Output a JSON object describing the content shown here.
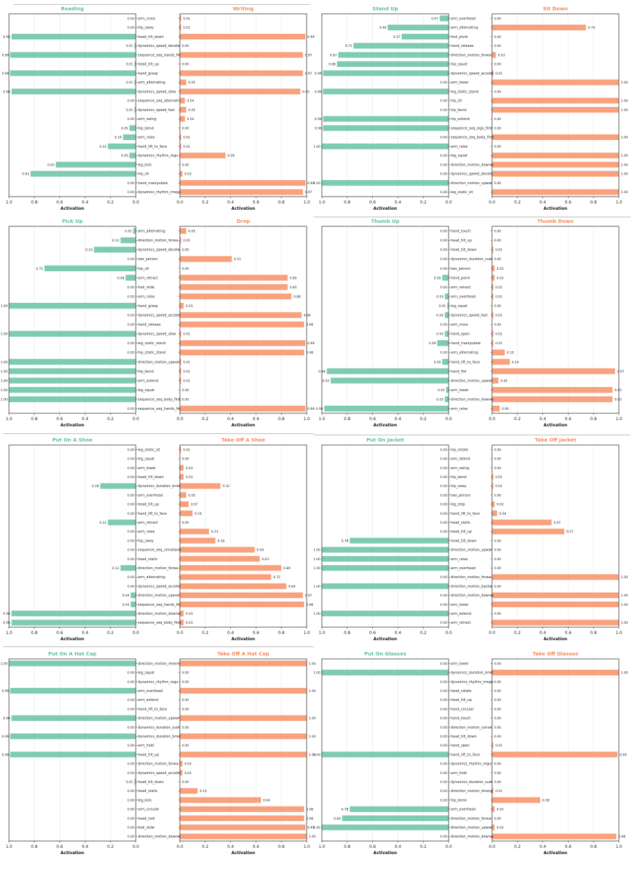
{
  "colors": {
    "left": "#7dcbb0",
    "right": "#f9a07c",
    "leftTitle": "#5fbf98",
    "rightTitle": "#f5895a"
  },
  "axis_label": "Activation",
  "left_ticks": [
    "1.0",
    "0.8",
    "0.6",
    "0.4",
    "0.2",
    "0.0"
  ],
  "right_ticks": [
    "0.0",
    "0.2",
    "0.4",
    "0.6",
    "0.8",
    "1.0"
  ],
  "chart_data": [
    {
      "type": "bar",
      "left_title": "Reading",
      "right_title": "Writing",
      "xlim": [
        0,
        1
      ],
      "categories": [
        "arm_cross",
        "hip_sway",
        "head_tilt_down",
        "dynamics_speed_decele",
        "sequence_seq_hands_fir",
        "head_tilt_up",
        "hand_grasp",
        "arm_alternating",
        "dynamics_speed_slow",
        "sequence_seq_alternati",
        "dynamics_speed_fast",
        "arm_swing",
        "hip_bend",
        "arm_raise",
        "hand_lift_to_face",
        "dynamics_rhythm_regu",
        "leg_kick",
        "hip_sit",
        "hand_manipulate",
        "dynamics_rhythm_irregu"
      ],
      "left_values": [
        0.0,
        0.0,
        0.98,
        0.01,
        0.99,
        0.01,
        0.99,
        0.01,
        0.98,
        0.0,
        0.01,
        0.0,
        0.05,
        0.1,
        0.22,
        0.05,
        0.63,
        0.83,
        0.0,
        0.0
      ],
      "left_labels": [
        "0.00",
        "0.00",
        "0.98",
        "0.01",
        "0.99",
        "0.01",
        "0.99",
        "0.01",
        "0.98",
        "0.00",
        "0.01",
        "0.00",
        "0.05",
        "0.10",
        "0.22",
        "0.05",
        "0.63",
        "0.83",
        "0.00",
        "0.00"
      ],
      "right_values": [
        0.01,
        0.01,
        0.99,
        0.0,
        0.97,
        0.0,
        0.97,
        0.05,
        0.95,
        0.04,
        0.05,
        0.04,
        0.0,
        0.01,
        0.01,
        0.36,
        0.0,
        0.02,
        0.99,
        0.97
      ],
      "right_labels": [
        "0.01",
        "0.01",
        "0.99",
        "0.00",
        "0.97",
        "0.00",
        "0.97",
        "0.05",
        "0.95",
        "0.04",
        "0.05",
        "0.04",
        "0.00",
        "0.01",
        "0.01",
        "0.36",
        "0.00",
        "0.02",
        "0.99",
        "0.97"
      ]
    },
    {
      "type": "bar",
      "left_title": "Stand Up",
      "right_title": "Sit Down",
      "xlim": [
        0,
        1
      ],
      "categories": [
        "arm_overhead",
        "arm_alternating",
        "foot_pivot",
        "hand_release",
        "direction_motion_forwa",
        "hip_squat",
        "dynamics_speed_acceler",
        "arm_lower",
        "leg_static_stand",
        "hip_sit",
        "hip_bend",
        "hip_extend",
        "sequence_seq_legs_first",
        "sequence_seq_body_first",
        "arm_raise",
        "leg_squat",
        "direction_motion_downw",
        "dynamics_speed_decele",
        "direction_motion_upwar",
        "leg_static_sit"
      ],
      "left_values": [
        0.07,
        0.48,
        0.37,
        0.75,
        0.87,
        0.88,
        0.99,
        0.0,
        0.99,
        0.0,
        0.0,
        0.99,
        0.99,
        0.0,
        1.0,
        0.0,
        0.0,
        0.0,
        1.0,
        0.0
      ],
      "left_labels": [
        "0.07",
        "0.48",
        "0.37",
        "0.75",
        "0.87",
        "0.88",
        "0.99",
        "0.00",
        "0.99",
        "0.00",
        "0.00",
        "0.99",
        "0.99",
        "0.00",
        "1.00",
        "0.00",
        "0.00",
        "0.00",
        "1.00",
        "0.00"
      ],
      "right_values": [
        0.0,
        0.74,
        0.0,
        0.0,
        0.03,
        0.0,
        0.01,
        1.0,
        0.0,
        1.0,
        1.0,
        0.0,
        0.0,
        1.0,
        0.0,
        1.0,
        1.0,
        1.0,
        0.0,
        1.0
      ],
      "right_labels": [
        "0.00",
        "0.74",
        "0.00",
        "0.00",
        "0.03",
        "0.00",
        "0.01",
        "1.00",
        "0.00",
        "1.00",
        "1.00",
        "0.00",
        "0.00",
        "1.00",
        "0.00",
        "1.00",
        "1.00",
        "1.00",
        "0.00",
        "1.00"
      ]
    },
    {
      "type": "bar",
      "left_title": "Pick Up",
      "right_title": "Drop",
      "xlim": [
        0,
        1
      ],
      "categories": [
        "arm_alternating",
        "direction_motion_forwa",
        "dynamics_speed_decele",
        "two_person",
        "hip_sit",
        "arm_retract",
        "foot_slide",
        "arm_raise",
        "hand_grasp",
        "dynamics_speed_acceler",
        "hand_release",
        "dynamics_speed_slow",
        "leg_static_stand",
        "hip_static_stand",
        "direction_motion_upwar",
        "hip_bend",
        "arm_extend",
        "leg_squat",
        "sequence_seq_body_first",
        "sequence_seq_hands_fir"
      ],
      "left_values": [
        0.02,
        0.12,
        0.33,
        0.0,
        0.72,
        0.08,
        0.0,
        0.0,
        1.0,
        0.0,
        0.0,
        1.0,
        0.0,
        0.0,
        1.0,
        1.0,
        1.0,
        1.0,
        1.0,
        0.0
      ],
      "left_labels": [
        "0.02",
        "0.12",
        "0.33",
        "0.00",
        "0.72",
        "0.08",
        "0.00",
        "0.00",
        "1.00",
        "0.00",
        "0.00",
        "1.00",
        "0.00",
        "0.00",
        "1.00",
        "1.00",
        "1.00",
        "1.00",
        "1.00",
        "0.00"
      ],
      "right_values": [
        0.05,
        0.01,
        0.0,
        0.41,
        0.0,
        0.85,
        0.85,
        0.88,
        0.03,
        0.96,
        0.98,
        0.01,
        0.99,
        0.98,
        0.01,
        0.01,
        0.01,
        0.0,
        0.0,
        0.99
      ],
      "right_labels": [
        "0.05",
        "0.01",
        "0.00",
        "0.41",
        "0.00",
        "0.85",
        "0.85",
        "0.88",
        "0.03",
        "0.96",
        "0.98",
        "0.01",
        "0.99",
        "0.98",
        "0.01",
        "0.01",
        "0.01",
        "0.00",
        "0.00",
        "0.99"
      ]
    },
    {
      "type": "bar",
      "left_title": "Thumb Up",
      "right_title": "Thumb Down",
      "xlim": [
        0,
        1
      ],
      "categories": [
        "hand_touch",
        "head_tilt_up",
        "head_tilt_down",
        "dynamics_duration_sust",
        "two_person",
        "hand_point",
        "arm_retract",
        "arm_overhead",
        "leg_squat",
        "dynamics_speed_fast",
        "arm_cross",
        "hand_open",
        "hand_manipulate",
        "arm_alternating",
        "hand_lift_to_face",
        "hand_fist",
        "direction_motion_upwar",
        "arm_lower",
        "direction_motion_downw",
        "arm_raise"
      ],
      "left_values": [
        0.0,
        0.0,
        0.0,
        0.0,
        0.0,
        0.05,
        0.0,
        0.03,
        0.01,
        0.03,
        0.0,
        0.03,
        0.09,
        0.0,
        0.05,
        0.96,
        0.93,
        0.02,
        0.03,
        0.98
      ],
      "left_labels": [
        "0.00",
        "0.00",
        "0.00",
        "0.00",
        "0.00",
        "0.05",
        "0.00",
        "0.03",
        "0.01",
        "0.03",
        "0.00",
        "0.03",
        "0.09",
        "0.00",
        "0.05",
        "0.96",
        "0.93",
        "0.02",
        "0.03",
        "0.98"
      ],
      "right_values": [
        0.0,
        0.0,
        0.01,
        0.0,
        0.02,
        0.02,
        0.01,
        0.01,
        0.0,
        0.01,
        0.0,
        0.01,
        0.01,
        0.1,
        0.14,
        0.97,
        0.05,
        0.95,
        0.95,
        0.06
      ],
      "right_labels": [
        "0.00",
        "0.00",
        "0.01",
        "0.00",
        "0.02",
        "0.02",
        "0.01",
        "0.01",
        "0.00",
        "0.01",
        "0.00",
        "0.01",
        "0.01",
        "0.10",
        "0.14",
        "0.97",
        "0.05",
        "0.95",
        "0.95",
        "0.06"
      ]
    },
    {
      "type": "bar",
      "left_title": "Put On A Shoe",
      "right_title": "Take Off A Shoe",
      "xlim": [
        0,
        1
      ],
      "categories": [
        "leg_static_sit",
        "leg_squat",
        "arm_lower",
        "head_tilt_down",
        "dynamics_duration_brief",
        "arm_overhead",
        "head_tilt_up",
        "hand_lift_to_face",
        "arm_retract",
        "arm_raise",
        "hip_sway",
        "sequence_seq_simultane",
        "head_static",
        "direction_motion_forwa",
        "arm_alternating",
        "dynamics_speed_acceler",
        "direction_motion_upwar",
        "sequence_seq_hands_fir",
        "direction_motion_downw",
        "sequence_seq_body_first"
      ],
      "left_values": [
        0.0,
        0.0,
        0.0,
        0.0,
        0.28,
        0.0,
        0.0,
        0.0,
        0.22,
        0.0,
        0.0,
        0.0,
        0.0,
        0.12,
        0.0,
        0.0,
        0.04,
        0.04,
        0.98,
        0.98
      ],
      "left_labels": [
        "0.00",
        "0.00",
        "0.00",
        "0.00",
        "0.28",
        "0.00",
        "0.00",
        "0.00",
        "0.22",
        "0.00",
        "0.00",
        "0.00",
        "0.00",
        "0.12",
        "0.00",
        "0.00",
        "0.04",
        "0.04",
        "0.98",
        "0.98"
      ],
      "right_values": [
        0.01,
        0.0,
        0.03,
        0.03,
        0.32,
        0.05,
        0.07,
        0.1,
        0.0,
        0.23,
        0.28,
        0.59,
        0.63,
        0.8,
        0.72,
        0.84,
        0.97,
        0.98,
        0.03,
        0.03
      ],
      "right_labels": [
        "0.01",
        "0.00",
        "0.03",
        "0.03",
        "0.32",
        "0.05",
        "0.07",
        "0.10",
        "0.00",
        "0.23",
        "0.28",
        "0.59",
        "0.63",
        "0.80",
        "0.72",
        "0.84",
        "0.97",
        "0.98",
        "0.03",
        "0.03"
      ]
    },
    {
      "type": "bar",
      "left_title": "Put On Jacket",
      "right_title": "Take Off Jacket",
      "xlim": [
        0,
        1
      ],
      "categories": [
        "hip_rotate",
        "arm_lateral",
        "arm_swing",
        "hip_bend",
        "hip_sway",
        "two_person",
        "leg_step",
        "hand_lift_to_face",
        "head_static",
        "head_tilt_up",
        "head_tilt_down",
        "direction_motion_upwar",
        "arm_raise",
        "arm_overhead",
        "direction_motion_forwa",
        "direction_motion_backw",
        "direction_motion_downw",
        "arm_lower",
        "arm_extend",
        "arm_retract"
      ],
      "left_values": [
        0.0,
        0.0,
        0.0,
        0.0,
        0.0,
        0.0,
        0.0,
        0.0,
        0.0,
        0.0,
        0.78,
        1.0,
        1.0,
        1.0,
        0.0,
        1.0,
        0.0,
        0.0,
        1.0,
        0.0
      ],
      "left_labels": [
        "0.00",
        "0.00",
        "0.00",
        "0.00",
        "0.00",
        "0.00",
        "0.00",
        "0.00",
        "0.00",
        "0.00",
        "0.78",
        "1.00",
        "1.00",
        "1.00",
        "0.00",
        "1.00",
        "0.00",
        "0.00",
        "1.00",
        "0.00"
      ],
      "right_values": [
        0.0,
        0.0,
        0.0,
        0.01,
        0.01,
        0.0,
        0.02,
        0.04,
        0.47,
        0.57,
        0.0,
        0.0,
        0.0,
        0.0,
        1.0,
        0.0,
        1.0,
        1.0,
        0.0,
        1.0
      ],
      "right_labels": [
        "0.00",
        "0.00",
        "0.00",
        "0.01",
        "0.01",
        "0.00",
        "0.02",
        "0.04",
        "0.47",
        "0.57",
        "0.00",
        "0.00",
        "0.00",
        "0.00",
        "1.00",
        "0.00",
        "1.00",
        "1.00",
        "0.00",
        "1.00"
      ]
    },
    {
      "type": "bar",
      "left_title": "Put On A Hat Cap",
      "right_title": "Take Off A Hat Cap",
      "xlim": [
        0,
        1
      ],
      "categories": [
        "direction_motion_revers",
        "leg_squat",
        "dynamics_rhythm_regu",
        "arm_overhead",
        "arm_extend",
        "hand_lift_to_face",
        "direction_motion_upwar",
        "dynamics_duration_sust",
        "dynamics_duration_brief",
        "arm_hold",
        "head_tilt_up",
        "direction_motion_forwa",
        "dynamics_speed_acceler",
        "head_tilt_down",
        "head_static",
        "leg_kick",
        "arm_circular",
        "head_nod",
        "foot_slide",
        "direction_motion_downw"
      ],
      "left_values": [
        1.0,
        0.0,
        0.0,
        0.99,
        0.0,
        0.0,
        0.98,
        0.0,
        0.99,
        0.0,
        0.99,
        0.0,
        0.0,
        0.01,
        0.0,
        0.0,
        0.0,
        0.0,
        0.0,
        0.0
      ],
      "left_labels": [
        "1.00",
        "0.00",
        "0.00",
        "0.99",
        "0.00",
        "0.00",
        "0.98",
        "0.00",
        "0.99",
        "0.00",
        "0.99",
        "0.00",
        "0.00",
        "0.01",
        "0.00",
        "0.00",
        "0.00",
        "0.00",
        "0.00",
        "0.00"
      ],
      "right_values": [
        1.0,
        0.0,
        0.0,
        1.0,
        0.0,
        0.0,
        1.0,
        0.0,
        1.0,
        0.0,
        1.0,
        0.02,
        0.02,
        0.0,
        0.14,
        0.64,
        0.98,
        0.98,
        0.99,
        1.0
      ],
      "right_labels": [
        "1.00",
        "0.00",
        "0.00",
        "1.00",
        "0.00",
        "0.00",
        "1.00",
        "0.00",
        "1.00",
        "0.00",
        "1.00",
        "0.02",
        "0.02",
        "0.00",
        "0.14",
        "0.64",
        "0.98",
        "0.98",
        "0.99",
        "1.00"
      ]
    },
    {
      "type": "bar",
      "left_title": "Put On Glasses",
      "right_title": "Take Off Glasses",
      "xlim": [
        0,
        1
      ],
      "categories": [
        "arm_lower",
        "dynamics_duration_brief",
        "dynamics_rhythm_irregu",
        "head_rotate",
        "head_tilt_up",
        "hand_circular",
        "hand_touch",
        "direction_motion_conve",
        "head_tilt_down",
        "hand_open",
        "hand_lift_to_face",
        "dynamics_rhythm_regu",
        "arm_hold",
        "dynamics_duration_sust",
        "direction_motion_diverg",
        "hip_bend",
        "arm_overhead",
        "direction_motion_forwa",
        "direction_motion_upwar",
        "direction_motion_downw"
      ],
      "left_values": [
        0.0,
        1.0,
        0.0,
        0.0,
        0.0,
        0.0,
        0.0,
        0.0,
        0.0,
        0.0,
        1.0,
        0.0,
        0.0,
        0.0,
        0.0,
        0.0,
        0.78,
        0.84,
        1.0,
        0.0
      ],
      "left_labels": [
        "0.00",
        "1.00",
        "0.00",
        "0.00",
        "0.00",
        "0.00",
        "0.00",
        "0.00",
        "0.00",
        "0.00",
        "1.00",
        "0.00",
        "0.00",
        "0.00",
        "0.00",
        "0.00",
        "0.78",
        "0.84",
        "1.00",
        "0.00"
      ],
      "right_values": [
        0.0,
        1.0,
        0.0,
        0.0,
        0.0,
        0.0,
        0.0,
        0.0,
        0.0,
        0.01,
        0.99,
        0.0,
        0.0,
        0.0,
        0.01,
        0.38,
        0.02,
        0.0,
        0.02,
        0.98
      ],
      "right_labels": [
        "0.00",
        "1.00",
        "0.00",
        "0.00",
        "0.00",
        "0.00",
        "0.00",
        "0.00",
        "0.00",
        "0.01",
        "0.99",
        "0.00",
        "0.00",
        "0.00",
        "0.01",
        "0.38",
        "0.02",
        "0.00",
        "0.02",
        "0.98"
      ]
    }
  ]
}
